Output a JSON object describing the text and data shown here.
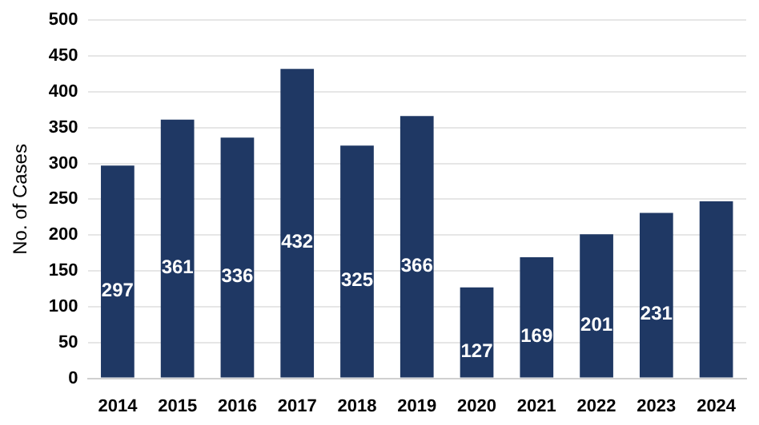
{
  "chart_data": {
    "type": "bar",
    "ylabel": "No. of Cases",
    "categories": [
      "2014",
      "2015",
      "2016",
      "2017",
      "2018",
      "2019",
      "2020",
      "2021",
      "2022",
      "2023",
      "2024"
    ],
    "values": [
      297,
      361,
      336,
      432,
      325,
      366,
      127,
      169,
      201,
      231,
      247
    ],
    "color": "#1f3864",
    "value_labels": [
      "297",
      "361",
      "336",
      "432",
      "325",
      "366",
      "127",
      "169",
      "201",
      "231",
      null
    ],
    "ylim": [
      0,
      500
    ],
    "yticks": [
      0,
      50,
      100,
      150,
      200,
      250,
      300,
      350,
      400,
      450,
      500
    ],
    "grid": "y",
    "legend": false
  }
}
